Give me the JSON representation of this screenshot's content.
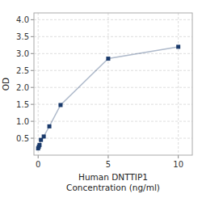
{
  "chart_data": {
    "type": "line",
    "x": [
      0,
      0.05,
      0.1,
      0.2,
      0.4,
      0.8,
      1.6,
      5,
      10
    ],
    "values": [
      0.2,
      0.25,
      0.3,
      0.45,
      0.55,
      0.85,
      1.48,
      2.85,
      3.2
    ],
    "color": "#1a3a6b",
    "marker": "square",
    "x_label": "Human DNTTIP1\nConcentration (ng/ml)",
    "y_label": "OD",
    "xlim": [
      -0.3,
      11.0
    ],
    "ylim": [
      0,
      4.2
    ],
    "xticks": [
      0,
      5,
      10
    ],
    "yticks": [
      0.5,
      {
        "value": 1.0,
        "label": "1.0"
      },
      1.5,
      {
        "value": 2.0,
        "label": "2.0"
      },
      2.5,
      {
        "value": 3.0,
        "label": "3.0"
      },
      3.5,
      {
        "value": 4.0,
        "label": "4.0"
      }
    ],
    "grid": true
  }
}
